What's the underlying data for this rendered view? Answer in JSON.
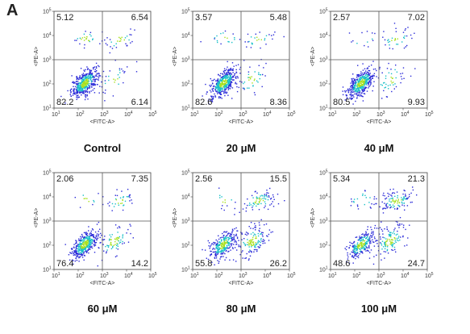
{
  "panel_letter": "A",
  "chart_data": [
    {
      "type": "scatter",
      "title": "Control",
      "xlabel": "<FITC-A>",
      "ylabel": "<PE-A>",
      "x_scale": "log",
      "y_scale": "log",
      "xlim": [
        10,
        100000
      ],
      "ylim": [
        10,
        100000
      ],
      "x_ticks": [
        "10^1",
        "10^2",
        "10^3",
        "10^4",
        "10^5"
      ],
      "y_ticks": [
        "10^1",
        "10^2",
        "10^3",
        "10^4",
        "10^5"
      ],
      "quadrant_gate": {
        "x": 1000,
        "y": 1000
      },
      "quadrants": {
        "upper_left": "5.12",
        "upper_right": "6.54",
        "lower_left": "82.2",
        "lower_right": "6.14"
      }
    },
    {
      "type": "scatter",
      "title": "20 μM",
      "xlabel": "<FITC-A>",
      "ylabel": "<PE-A>",
      "x_scale": "log",
      "y_scale": "log",
      "xlim": [
        10,
        100000
      ],
      "ylim": [
        10,
        100000
      ],
      "x_ticks": [
        "10^1",
        "10^2",
        "10^3",
        "10^4",
        "10^5"
      ],
      "y_ticks": [
        "10^1",
        "10^2",
        "10^3",
        "10^4",
        "10^5"
      ],
      "quadrant_gate": {
        "x": 1000,
        "y": 1000
      },
      "quadrants": {
        "upper_left": "3.57",
        "upper_right": "5.48",
        "lower_left": "82.6",
        "lower_right": "8.36"
      }
    },
    {
      "type": "scatter",
      "title": "40 μM",
      "xlabel": "<FITC-A>",
      "ylabel": "<PE-A>",
      "x_scale": "log",
      "y_scale": "log",
      "xlim": [
        10,
        100000
      ],
      "ylim": [
        10,
        100000
      ],
      "x_ticks": [
        "10^1",
        "10^2",
        "10^3",
        "10^4",
        "10^5"
      ],
      "y_ticks": [
        "10^1",
        "10^2",
        "10^3",
        "10^4",
        "10^5"
      ],
      "quadrant_gate": {
        "x": 1000,
        "y": 1000
      },
      "quadrants": {
        "upper_left": "2.57",
        "upper_right": "7.02",
        "lower_left": "80.5",
        "lower_right": "9.93"
      }
    },
    {
      "type": "scatter",
      "title": "60 μM",
      "xlabel": "<FITC-A>",
      "ylabel": "<PE-A>",
      "x_scale": "log",
      "y_scale": "log",
      "xlim": [
        10,
        100000
      ],
      "ylim": [
        10,
        100000
      ],
      "x_ticks": [
        "10^1",
        "10^2",
        "10^3",
        "10^4",
        "10^5"
      ],
      "y_ticks": [
        "10^1",
        "10^2",
        "10^3",
        "10^4",
        "10^5"
      ],
      "quadrant_gate": {
        "x": 1000,
        "y": 1000
      },
      "quadrants": {
        "upper_left": "2.06",
        "upper_right": "7.35",
        "lower_left": "76.4",
        "lower_right": "14.2"
      }
    },
    {
      "type": "scatter",
      "title": "80 μM",
      "xlabel": "<FITC-A>",
      "ylabel": "<PE-A>",
      "x_scale": "log",
      "y_scale": "log",
      "xlim": [
        10,
        100000
      ],
      "ylim": [
        10,
        100000
      ],
      "x_ticks": [
        "10^1",
        "10^2",
        "10^3",
        "10^4",
        "10^5"
      ],
      "y_ticks": [
        "10^1",
        "10^2",
        "10^3",
        "10^4",
        "10^5"
      ],
      "quadrant_gate": {
        "x": 1000,
        "y": 1000
      },
      "quadrants": {
        "upper_left": "2.56",
        "upper_right": "15.5",
        "lower_left": "55.8",
        "lower_right": "26.2"
      }
    },
    {
      "type": "scatter",
      "title": "100 μM",
      "xlabel": "<FITC-A>",
      "ylabel": "<PE-A>",
      "x_scale": "log",
      "y_scale": "log",
      "xlim": [
        10,
        100000
      ],
      "ylim": [
        10,
        100000
      ],
      "x_ticks": [
        "10^1",
        "10^2",
        "10^3",
        "10^4",
        "10^5"
      ],
      "y_ticks": [
        "10^1",
        "10^2",
        "10^3",
        "10^4",
        "10^5"
      ],
      "quadrant_gate": {
        "x": 1000,
        "y": 1000
      },
      "quadrants": {
        "upper_left": "5.34",
        "upper_right": "21.3",
        "lower_left": "48.6",
        "lower_right": "24.7"
      }
    }
  ],
  "colors": {
    "density_low": "#2b2bd8",
    "density_mid": "#19c0c8",
    "density_high": "#a8e01c",
    "gate_line": "#555555",
    "frame": "#444444"
  }
}
